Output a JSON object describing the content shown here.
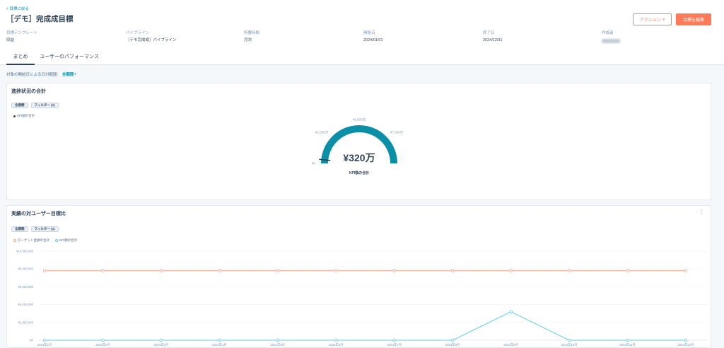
{
  "theme": {
    "accent": "#ff7a59",
    "link": "#0091ae",
    "text": "#33475b",
    "background": "#f5f8fa"
  },
  "icons": {
    "back": "chevron-left-icon",
    "dropdown": "caret-down-icon",
    "menu": "kebab-menu-icon"
  },
  "back_link": "目標に戻る",
  "title": "［デモ］完成成目標",
  "actions": {
    "action_label": "アクション",
    "edit_label": "目標を編集"
  },
  "meta": [
    {
      "label": "目標テンプレート",
      "value": "収益"
    },
    {
      "label": "パイプライン",
      "value": "［デモ完成成］パイプライン"
    },
    {
      "label": "所要時間",
      "value": "月次"
    },
    {
      "label": "開始日",
      "value": "2024/01/01"
    },
    {
      "label": "終了日",
      "value": "2024/12/31"
    },
    {
      "label": "作成者"
    }
  ],
  "tabs": [
    {
      "label": "まとめ",
      "active": true
    },
    {
      "label": "ユーザーのパフォーマンス",
      "active": false
    }
  ],
  "date_filter": {
    "label": "対象の開始日による日付範囲：",
    "value": "全期間"
  },
  "cards": [
    {
      "pills": [
        "全期間",
        "フィルター (1)"
      ]
    },
    {
      "pills": [
        "全期間",
        "フィルター (1)"
      ]
    }
  ],
  "chart_data": [
    {
      "type": "gauge",
      "title": "進捗状況の合計",
      "legend": [
        "KPI額の合計"
      ],
      "legend_position": "top-left",
      "value": 3200000,
      "value_label": "¥320万",
      "value_caption": "KPI額の合計",
      "range": [
        0,
        100000000
      ],
      "ticks": [
        {
          "value": 0,
          "label": "¥0"
        },
        {
          "value": 25000000,
          "label": "¥2,500万"
        },
        {
          "value": 50000000,
          "label": "¥5,000万"
        },
        {
          "value": 75000000,
          "label": "¥7,500万"
        }
      ],
      "colors": {
        "arc": "#0a8fa6",
        "marker": "#2d3e50"
      }
    },
    {
      "type": "line",
      "title": "実績の対ユーザー目標比",
      "categories": [
        "2024年1月",
        "2024年2月",
        "2024年3月",
        "2024年4月",
        "2024年5月",
        "2024年6月",
        "2024年7月",
        "2024年8月",
        "2024年9月",
        "2024年10月",
        "2024年11月",
        "2024年12月"
      ],
      "series": [
        {
          "name": "ターゲット金額の合計",
          "values": [
            7800000,
            7800000,
            7800000,
            7800000,
            7800000,
            7800000,
            7800000,
            7800000,
            7800000,
            7800000,
            7800000,
            7800000
          ],
          "color": "#f4a48a"
        },
        {
          "name": "KPI額の合計",
          "values": [
            0,
            0,
            0,
            0,
            0,
            0,
            0,
            0,
            3200000,
            0,
            0,
            0
          ],
          "color": "#62cde0"
        }
      ],
      "ylim": [
        0,
        10000000
      ],
      "yticks": [
        {
          "value": 0,
          "label": "¥0"
        },
        {
          "value": 2000000,
          "label": "¥2,000,000"
        },
        {
          "value": 4000000,
          "label": "¥4,000,000"
        },
        {
          "value": 6000000,
          "label": "¥6,000,000"
        },
        {
          "value": 8000000,
          "label": "¥8,000,000"
        },
        {
          "value": 10000000,
          "label": "¥10,000,000"
        }
      ],
      "grid": true,
      "legend_position": "top-left"
    }
  ]
}
